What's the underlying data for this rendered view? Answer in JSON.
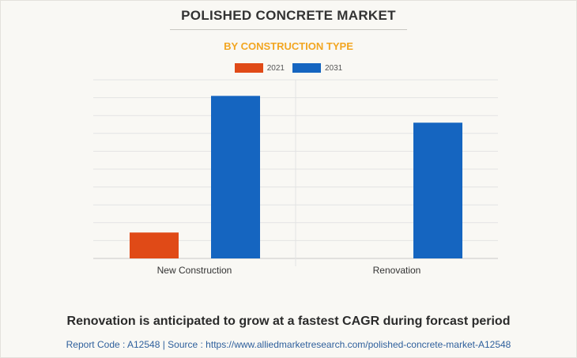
{
  "header": {
    "title": "POLISHED CONCRETE MARKET",
    "subtitle": "BY CONSTRUCTION TYPE"
  },
  "colors": {
    "series_2021": "#e04a17",
    "series_2031": "#1565c0",
    "subtitle": "#f2a622",
    "footer_link": "#2e5f9c"
  },
  "chart_data": {
    "type": "bar",
    "categories": [
      "New Construction",
      "Renovation"
    ],
    "series": [
      {
        "name": "2021",
        "values": [
          14.5,
          0
        ]
      },
      {
        "name": "2031",
        "values": [
          91,
          76
        ]
      }
    ],
    "ylim": [
      0,
      100
    ],
    "grid": true,
    "legend_position": "top-center",
    "xlabel": "",
    "ylabel": ""
  },
  "footer": {
    "note": "Renovation is anticipated to grow at a fastest CAGR during forcast period",
    "source": "Report Code : A12548  |  Source : https://www.alliedmarketresearch.com/polished-concrete-market-A12548"
  }
}
